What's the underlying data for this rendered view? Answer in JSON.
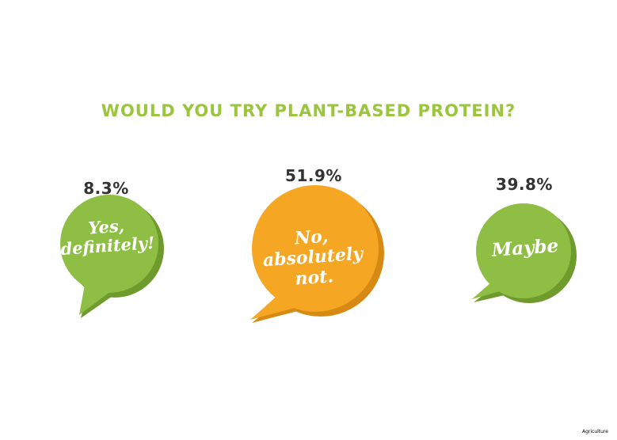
{
  "title": "WOULD YOU TRY PLANT-BASED PROTEIN?",
  "source_label": "Agriculture",
  "colors": {
    "title": "#9bc53d",
    "green_bubble": "#8fbe45",
    "green_shadow": "#6f9a2c",
    "orange_bubble": "#f5a623",
    "orange_shadow": "#d68a14",
    "percent_text": "#333333"
  },
  "chart_data": {
    "type": "bar",
    "title": "WOULD YOU TRY PLANT-BASED PROTEIN?",
    "categories": [
      "Yes, definitely!",
      "No, absolutely not.",
      "Maybe"
    ],
    "values": [
      8.3,
      51.9,
      39.8
    ],
    "value_labels": [
      "8.3%",
      "51.9%",
      "39.8%"
    ],
    "units": "%",
    "bubble_labels": [
      [
        "Yes,",
        "definitely!"
      ],
      [
        "No,",
        "absolutely",
        "not."
      ],
      [
        "Maybe"
      ]
    ],
    "bubble_colors": [
      "green",
      "orange",
      "green"
    ]
  }
}
